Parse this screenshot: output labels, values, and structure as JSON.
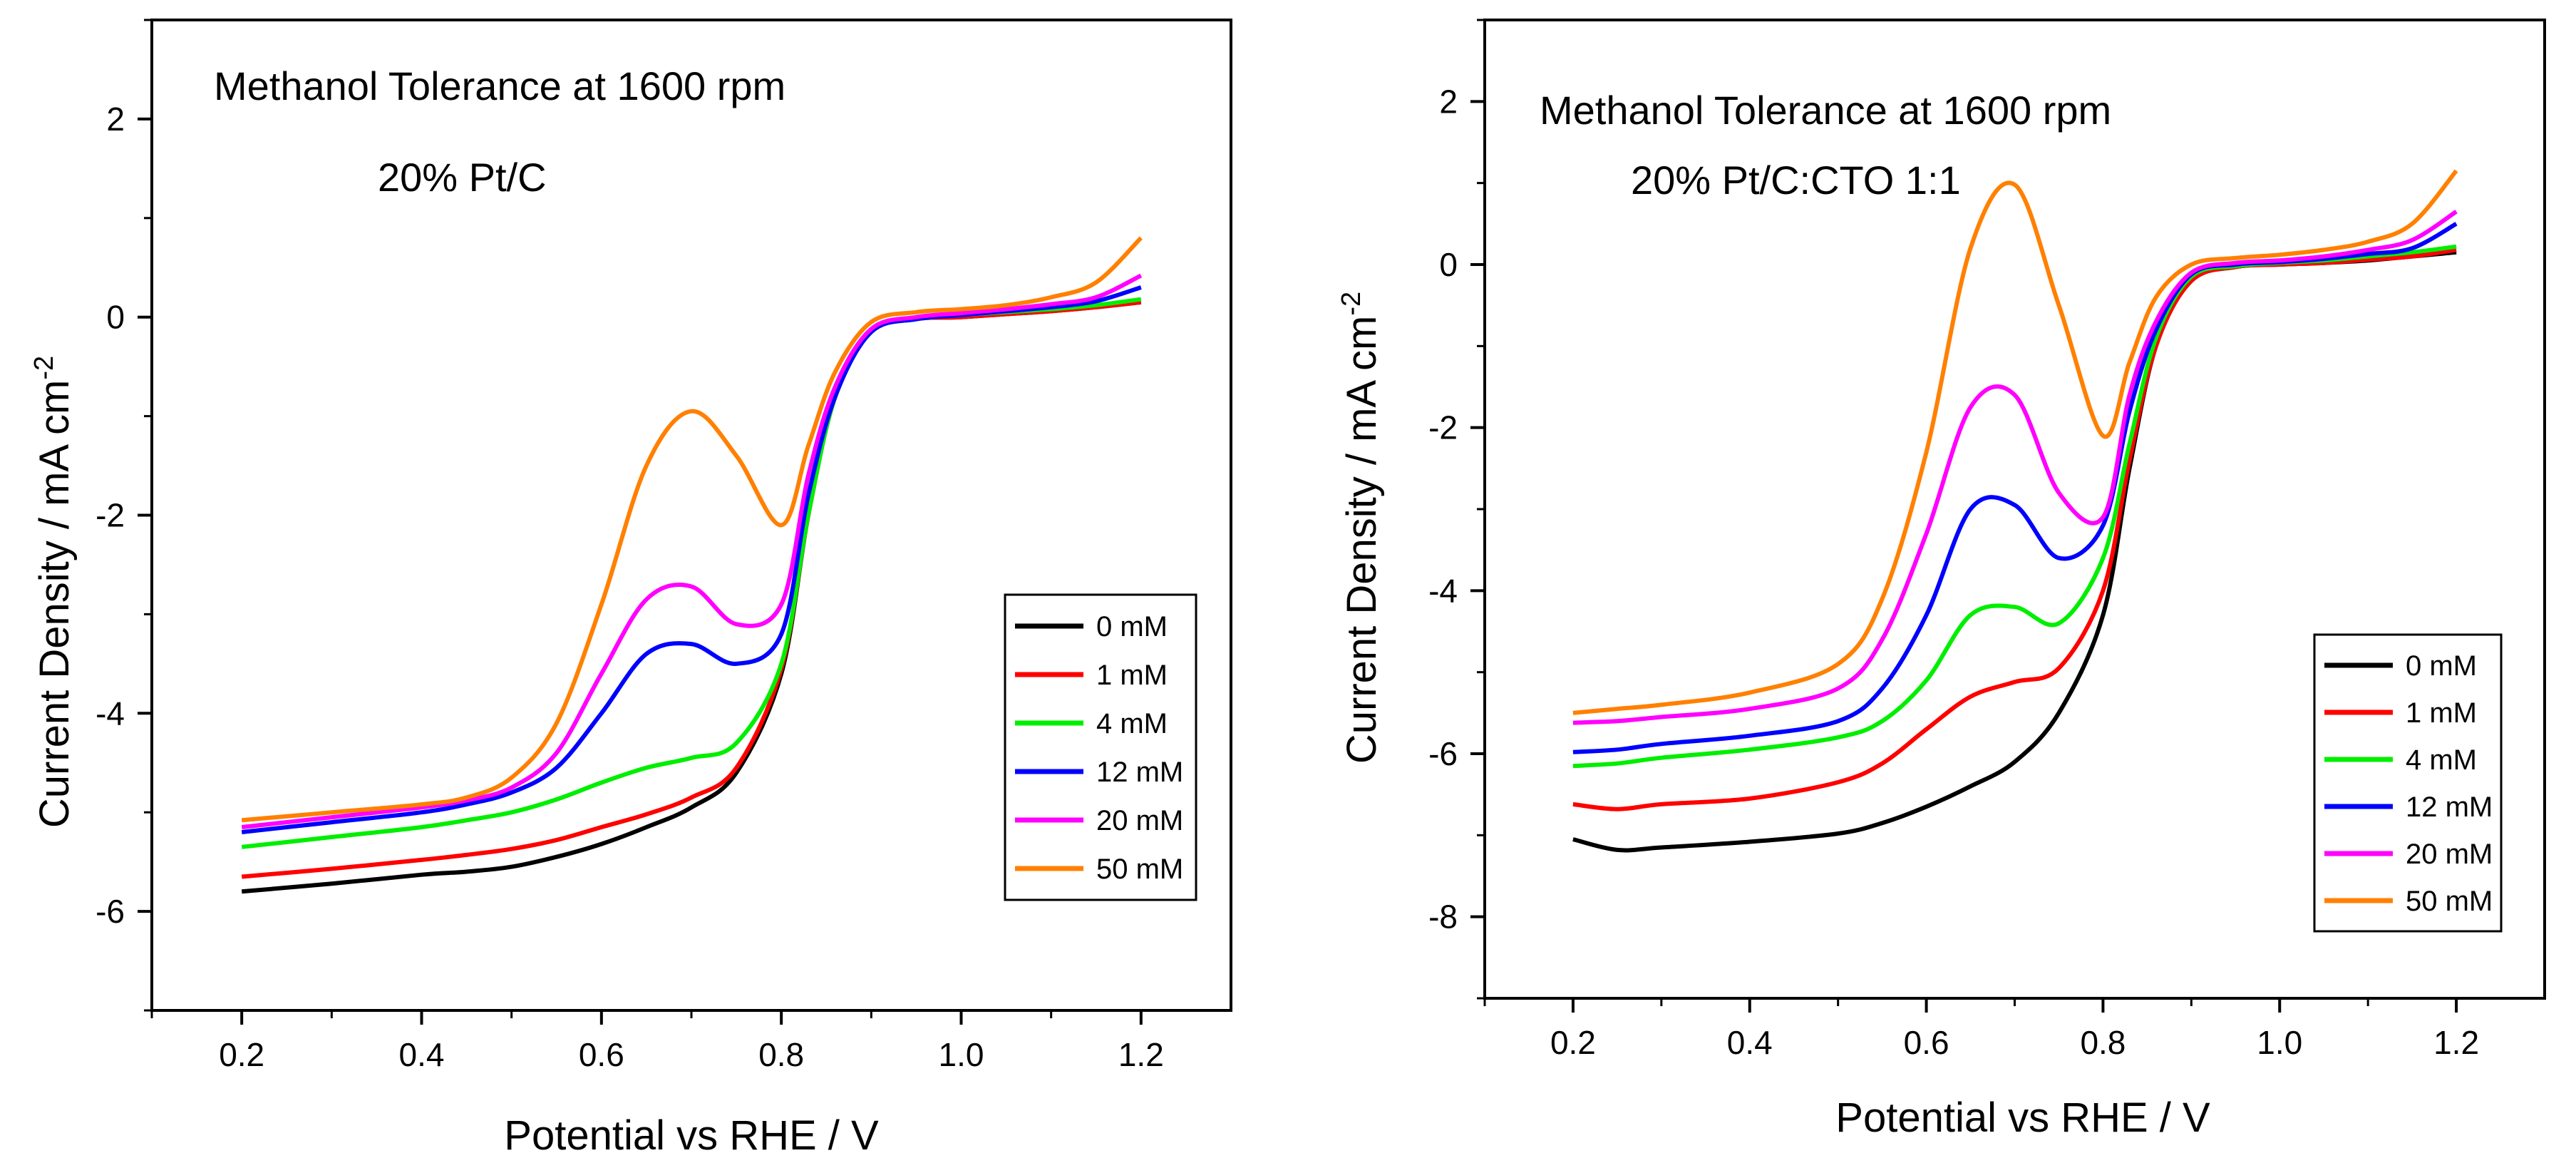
{
  "chart_data": [
    {
      "type": "line",
      "annotations": [
        "Methanol Tolerance at 1600 rpm",
        "20% Pt/C"
      ],
      "xlabel": "Potential vs RHE / V",
      "ylabel": "Current Density / mA cm",
      "ylabel_sup": "-2",
      "xlim": [
        0.1,
        1.3
      ],
      "ylim": [
        -7,
        3
      ],
      "xticks": [
        "0.2",
        "0.4",
        "0.6",
        "0.8",
        "1.0",
        "1.2"
      ],
      "yticks": [
        "2",
        "0",
        "-2",
        "-4",
        "-6"
      ],
      "legend_position": "right-middle",
      "x": [
        0.2,
        0.3,
        0.4,
        0.45,
        0.5,
        0.55,
        0.6,
        0.65,
        0.7,
        0.75,
        0.8,
        0.83,
        0.86,
        0.9,
        0.95,
        1.0,
        1.05,
        1.1,
        1.15,
        1.2
      ],
      "series": [
        {
          "name": "0 mM",
          "color": "#000000",
          "values": [
            -5.8,
            -5.72,
            -5.63,
            -5.6,
            -5.55,
            -5.45,
            -5.32,
            -5.15,
            -4.95,
            -4.6,
            -3.6,
            -2.0,
            -0.8,
            -0.15,
            -0.02,
            0.0,
            0.03,
            0.06,
            0.1,
            0.15
          ]
        },
        {
          "name": "1 mM",
          "color": "#ff0000",
          "values": [
            -5.65,
            -5.57,
            -5.48,
            -5.43,
            -5.37,
            -5.28,
            -5.15,
            -5.02,
            -4.85,
            -4.55,
            -3.55,
            -2.0,
            -0.8,
            -0.15,
            -0.02,
            0.0,
            0.03,
            0.06,
            0.1,
            0.15
          ]
        },
        {
          "name": "4 mM",
          "color": "#00ee00",
          "values": [
            -5.35,
            -5.25,
            -5.15,
            -5.08,
            -5.0,
            -4.87,
            -4.7,
            -4.55,
            -4.45,
            -4.3,
            -3.5,
            -2.0,
            -0.8,
            -0.15,
            -0.02,
            0.02,
            0.05,
            0.08,
            0.12,
            0.18
          ]
        },
        {
          "name": "12 mM",
          "color": "#0000ff",
          "values": [
            -5.2,
            -5.1,
            -5.0,
            -4.92,
            -4.8,
            -4.55,
            -4.0,
            -3.4,
            -3.3,
            -3.5,
            -3.2,
            -1.8,
            -0.8,
            -0.15,
            -0.02,
            0.02,
            0.06,
            0.1,
            0.16,
            0.3
          ]
        },
        {
          "name": "20 mM",
          "color": "#ff00ff",
          "values": [
            -5.15,
            -5.05,
            -4.95,
            -4.88,
            -4.75,
            -4.4,
            -3.6,
            -2.85,
            -2.72,
            -3.1,
            -2.9,
            -1.6,
            -0.7,
            -0.12,
            0.0,
            0.04,
            0.08,
            0.13,
            0.2,
            0.42
          ]
        },
        {
          "name": "50 mM",
          "color": "#ff8000",
          "values": [
            -5.08,
            -5.0,
            -4.92,
            -4.85,
            -4.65,
            -4.1,
            -2.9,
            -1.5,
            -0.95,
            -1.4,
            -2.1,
            -1.3,
            -0.55,
            -0.05,
            0.05,
            0.08,
            0.12,
            0.2,
            0.35,
            0.8
          ]
        }
      ]
    },
    {
      "type": "line",
      "annotations": [
        "Methanol Tolerance at 1600 rpm",
        "20% Pt/C:CTO 1:1"
      ],
      "xlabel": "Potential vs RHE / V",
      "ylabel": "Current Density / mA cm",
      "ylabel_sup": "-2",
      "xlim": [
        0.1,
        1.3
      ],
      "ylim": [
        -9,
        3
      ],
      "xticks": [
        "0.2",
        "0.4",
        "0.6",
        "0.8",
        "1.0",
        "1.2"
      ],
      "yticks": [
        "2",
        "0",
        "-2",
        "-4",
        "-6",
        "-8"
      ],
      "legend_position": "bottom-right",
      "x": [
        0.2,
        0.25,
        0.3,
        0.4,
        0.5,
        0.55,
        0.6,
        0.65,
        0.7,
        0.75,
        0.8,
        0.83,
        0.86,
        0.9,
        0.95,
        1.0,
        1.05,
        1.1,
        1.15,
        1.2
      ],
      "series": [
        {
          "name": "0 mM",
          "color": "#000000",
          "values": [
            -7.05,
            -7.18,
            -7.15,
            -7.08,
            -6.98,
            -6.85,
            -6.65,
            -6.4,
            -6.1,
            -5.5,
            -4.3,
            -2.5,
            -1.0,
            -0.2,
            -0.03,
            0.0,
            0.02,
            0.05,
            0.1,
            0.15
          ]
        },
        {
          "name": "1 mM",
          "color": "#ff0000",
          "values": [
            -6.62,
            -6.68,
            -6.62,
            -6.55,
            -6.35,
            -6.12,
            -5.7,
            -5.3,
            -5.12,
            -4.95,
            -4.0,
            -2.4,
            -1.0,
            -0.2,
            -0.03,
            0.0,
            0.02,
            0.06,
            0.1,
            0.18
          ]
        },
        {
          "name": "4 mM",
          "color": "#00ee00",
          "values": [
            -6.15,
            -6.12,
            -6.05,
            -5.95,
            -5.8,
            -5.6,
            -5.1,
            -4.3,
            -4.2,
            -4.4,
            -3.6,
            -2.2,
            -0.9,
            -0.15,
            -0.02,
            0.02,
            0.05,
            0.1,
            0.15,
            0.22
          ]
        },
        {
          "name": "12 mM",
          "color": "#0000ff",
          "values": [
            -5.98,
            -5.95,
            -5.88,
            -5.78,
            -5.6,
            -5.2,
            -4.3,
            -3.0,
            -2.95,
            -3.6,
            -3.2,
            -1.8,
            -0.8,
            -0.12,
            0.0,
            0.03,
            0.07,
            0.13,
            0.2,
            0.5
          ]
        },
        {
          "name": "20 mM",
          "color": "#ff00ff",
          "values": [
            -5.62,
            -5.6,
            -5.55,
            -5.45,
            -5.2,
            -4.6,
            -3.3,
            -1.75,
            -1.6,
            -2.8,
            -3.1,
            -1.6,
            -0.7,
            -0.1,
            0.02,
            0.05,
            0.1,
            0.18,
            0.3,
            0.65
          ]
        },
        {
          "name": "50 mM",
          "color": "#ff8000",
          "values": [
            -5.5,
            -5.45,
            -5.4,
            -5.25,
            -4.9,
            -4.1,
            -2.3,
            0.2,
            0.98,
            -0.5,
            -2.1,
            -1.2,
            -0.4,
            0.0,
            0.08,
            0.12,
            0.18,
            0.28,
            0.5,
            1.15
          ]
        }
      ]
    }
  ]
}
